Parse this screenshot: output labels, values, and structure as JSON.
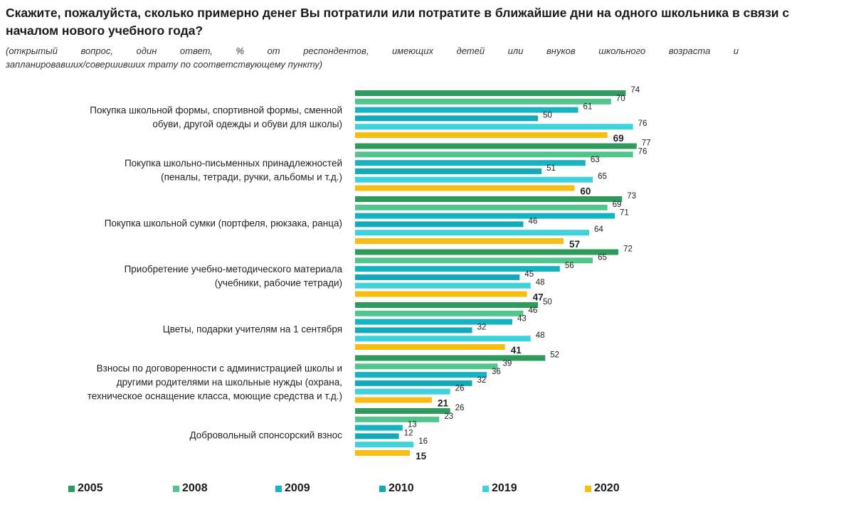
{
  "title": "Скажите, пожалуйста, сколько примерно денег Вы потратили или потратите в ближайшие дни на одного школьника в связи с началом нового учебного года?",
  "subtitle_line1": "(открытый вопрос, один ответ, % от респондентов, имеющих детей или внуков школьного возраста и",
  "subtitle_line2": "запланировавших/совершивших трату по соответствующему пункту)",
  "colors": {
    "2005": "#2e9a5b",
    "2008": "#52c48d",
    "2009": "#16b3c2",
    "2010": "#14a9b8",
    "2019": "#3fd2dd",
    "2020": "#f8bd12"
  },
  "chart_data": {
    "type": "bar",
    "orientation": "horizontal",
    "categories": [
      [
        "Покупка школьной формы, спортивной формы, сменной",
        "обуви, другой одежды и обуви для школы)"
      ],
      [
        "Покупка школьно-письменных принадлежностей",
        "(пеналы, тетради, ручки, альбомы и т.д.)"
      ],
      [
        "Покупка школьной сумки (портфеля, рюкзака, ранца)"
      ],
      [
        "Приобретение учебно-методического материала",
        "(учебники, рабочие тетради)"
      ],
      [
        "Цветы, подарки учителям на 1 сентября"
      ],
      [
        "Взносы по договоренности с администрацией школы и",
        "другими родителями на школьные нужды (охрана,",
        "техническое оснащение класса, моющие средства и т.д.)"
      ],
      [
        "Добровольный спонсорский взнос"
      ]
    ],
    "series": [
      {
        "name": "2005",
        "values": [
          74,
          77,
          73,
          72,
          50,
          52,
          26
        ]
      },
      {
        "name": "2008",
        "values": [
          70,
          76,
          69,
          65,
          46,
          39,
          23
        ]
      },
      {
        "name": "2009",
        "values": [
          61,
          63,
          71,
          56,
          43,
          36,
          13
        ]
      },
      {
        "name": "2010",
        "values": [
          50,
          51,
          46,
          45,
          32,
          32,
          12
        ]
      },
      {
        "name": "2019",
        "values": [
          76,
          65,
          64,
          48,
          48,
          26,
          16
        ]
      },
      {
        "name": "2020",
        "values": [
          69,
          60,
          57,
          47,
          41,
          21,
          15
        ]
      }
    ],
    "xlim": [
      0,
      100
    ],
    "highlight_series": "2020",
    "legend_position": "bottom",
    "grid": false
  }
}
